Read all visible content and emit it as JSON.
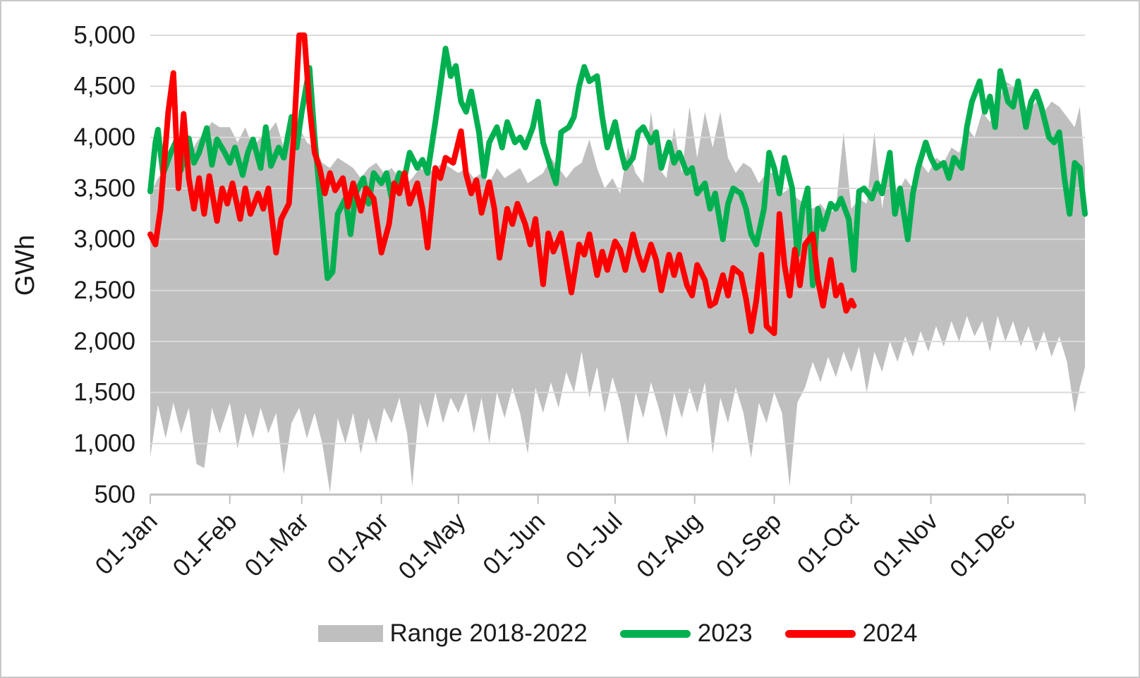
{
  "chart_data": {
    "type": "line",
    "title": "",
    "xlabel": "",
    "ylabel": "GWh",
    "ylim": [
      500,
      5000
    ],
    "ytick_step": 500,
    "yticks_values": [
      5000,
      4500,
      4000,
      3500,
      3000,
      2500,
      2000,
      1500,
      1000,
      500
    ],
    "yticks_labels": [
      "5,000",
      "4,500",
      "4,000",
      "3,500",
      "3,000",
      "2,500",
      "2,000",
      "1,500",
      "1,000",
      "500"
    ],
    "x_unit": "day-of-year",
    "x_range_days": [
      1,
      365
    ],
    "xticks": [
      {
        "day": 1,
        "label": "01-Jan"
      },
      {
        "day": 32,
        "label": "01-Feb"
      },
      {
        "day": 60,
        "label": "01-Mar"
      },
      {
        "day": 91,
        "label": "01-Apr"
      },
      {
        "day": 121,
        "label": "01-May"
      },
      {
        "day": 152,
        "label": "01-Jun"
      },
      {
        "day": 182,
        "label": "01-Jul"
      },
      {
        "day": 213,
        "label": "01-Aug"
      },
      {
        "day": 244,
        "label": "01-Sep"
      },
      {
        "day": 274,
        "label": "01-Oct"
      },
      {
        "day": 305,
        "label": "01-Nov"
      },
      {
        "day": 335,
        "label": "01-Dec"
      }
    ],
    "end_tick_day": 365,
    "grid": "horizontal",
    "gridline_color": "#D9D9D9",
    "axis_line_color": "#BFBFBF",
    "text_color": "#1a1a1a",
    "legend_position": "bottom",
    "note": "Red 2024 series is clipped at the 5,000 axis maximum around 01-Mar; 2024 data ends in early October.",
    "series": [
      {
        "name": "Range 2018-2022",
        "type": "band",
        "color": "#BFBFBF",
        "days": [
          1,
          4,
          7,
          10,
          13,
          16,
          19,
          22,
          25,
          28,
          32,
          35,
          38,
          41,
          44,
          47,
          50,
          53,
          56,
          59,
          62,
          65,
          68,
          71,
          74,
          77,
          80,
          83,
          86,
          89,
          92,
          95,
          98,
          101,
          103,
          106,
          109,
          112,
          115,
          118,
          121,
          124,
          127,
          130,
          133,
          136,
          139,
          142,
          145,
          148,
          151,
          154,
          157,
          160,
          163,
          166,
          169,
          172,
          175,
          178,
          181,
          184,
          187,
          190,
          193,
          196,
          199,
          202,
          205,
          208,
          211,
          214,
          217,
          220,
          223,
          226,
          229,
          232,
          235,
          238,
          241,
          244,
          247,
          250,
          253,
          256,
          259,
          262,
          265,
          268,
          271,
          274,
          277,
          280,
          283,
          286,
          289,
          292,
          295,
          298,
          301,
          304,
          307,
          310,
          313,
          316,
          319,
          322,
          325,
          328,
          331,
          334,
          337,
          340,
          343,
          346,
          349,
          352,
          355,
          358,
          361,
          363,
          365
        ],
        "max": [
          3450,
          3600,
          3700,
          3850,
          3780,
          3800,
          3950,
          4050,
          4150,
          4100,
          4100,
          3950,
          4100,
          3900,
          4000,
          4050,
          4150,
          3900,
          4000,
          4100,
          3950,
          3900,
          3750,
          3700,
          3800,
          3750,
          3700,
          3600,
          3700,
          3750,
          3650,
          3700,
          3600,
          3550,
          3600,
          3700,
          3650,
          3700,
          3750,
          3700,
          3650,
          3700,
          3600,
          3650,
          3550,
          3700,
          3600,
          3650,
          3700,
          3550,
          3600,
          3650,
          3800,
          3700,
          3600,
          3700,
          3750,
          3980,
          3700,
          3500,
          3600,
          3450,
          3900,
          3650,
          3550,
          4250,
          3700,
          3600,
          4100,
          3650,
          4300,
          3800,
          4250,
          3900,
          4250,
          3800,
          3650,
          3750,
          3700,
          3550,
          3650,
          3650,
          3450,
          3500,
          3400,
          3350,
          3300,
          3350,
          3250,
          3300,
          4050,
          3300,
          3400,
          3350,
          4050,
          3300,
          3800,
          3450,
          3600,
          3500,
          3750,
          3650,
          3800,
          3750,
          3900,
          3850,
          4100,
          4000,
          4250,
          4150,
          4300,
          4550,
          4500,
          4400,
          4250,
          4350,
          4250,
          4350,
          4300,
          4200,
          4100,
          4300,
          3700
        ],
        "min": [
          870,
          1380,
          1050,
          1400,
          1100,
          1350,
          800,
          760,
          1350,
          1100,
          1400,
          950,
          1300,
          1050,
          1350,
          1100,
          1300,
          700,
          1200,
          1350,
          1050,
          1300,
          1000,
          520,
          1250,
          1000,
          1300,
          900,
          1250,
          1000,
          1350,
          1200,
          1450,
          1100,
          580,
          1400,
          1150,
          1500,
          1200,
          1450,
          1300,
          1500,
          1100,
          1450,
          1000,
          1500,
          1250,
          1550,
          1300,
          900,
          1550,
          1300,
          1600,
          1350,
          1700,
          1500,
          1900,
          1450,
          1750,
          1300,
          1650,
          1400,
          990,
          1500,
          1250,
          1600,
          1350,
          1050,
          1500,
          1250,
          1550,
          1300,
          1600,
          900,
          1450,
          1200,
          1550,
          1300,
          860,
          1400,
          1200,
          1500,
          1300,
          580,
          1400,
          1550,
          1800,
          1600,
          1850,
          1650,
          1900,
          1700,
          1950,
          1500,
          1900,
          1700,
          2000,
          1800,
          2050,
          1850,
          2100,
          1900,
          2150,
          1950,
          2200,
          2000,
          2250,
          2050,
          2200,
          1900,
          2250,
          2000,
          2200,
          1950,
          2150,
          1900,
          2100,
          1850,
          2050,
          1800,
          1300,
          1550,
          1750
        ]
      },
      {
        "name": "2023",
        "type": "line",
        "color": "#00B050",
        "days": [
          1,
          3,
          4,
          6,
          9,
          11,
          13,
          16,
          18,
          20,
          23,
          25,
          27,
          30,
          32,
          34,
          37,
          39,
          41,
          44,
          46,
          48,
          51,
          53,
          56,
          58,
          60,
          63,
          65,
          67,
          70,
          72,
          74,
          77,
          79,
          81,
          84,
          86,
          88,
          91,
          93,
          95,
          98,
          100,
          102,
          105,
          107,
          109,
          112,
          114,
          116,
          118,
          120,
          122,
          124,
          126,
          129,
          131,
          133,
          136,
          138,
          140,
          143,
          145,
          147,
          150,
          152,
          154,
          157,
          159,
          161,
          164,
          166,
          168,
          170,
          172,
          175,
          177,
          179,
          182,
          184,
          186,
          189,
          191,
          193,
          196,
          198,
          200,
          203,
          205,
          207,
          210,
          212,
          214,
          217,
          219,
          221,
          224,
          226,
          228,
          231,
          233,
          235,
          237,
          240,
          242,
          244,
          246,
          248,
          251,
          253,
          255,
          257,
          259,
          261,
          263,
          266,
          268,
          270,
          273,
          275,
          277,
          279,
          282,
          284,
          286,
          289,
          291,
          293,
          296,
          298,
          300,
          303,
          305,
          307,
          310,
          312,
          314,
          317,
          319,
          321,
          324,
          326,
          328,
          330,
          332,
          335,
          337,
          339,
          342,
          344,
          346,
          348,
          351,
          353,
          355,
          357,
          359,
          361,
          363,
          365
        ],
        "values": [
          3470,
          3950,
          4075,
          3640,
          3850,
          3960,
          3680,
          3990,
          3750,
          3850,
          4090,
          3730,
          3980,
          3850,
          3750,
          3900,
          3630,
          3850,
          3980,
          3700,
          4100,
          3720,
          3900,
          3800,
          4200,
          3900,
          4250,
          4680,
          4000,
          3450,
          2620,
          2680,
          3250,
          3400,
          3050,
          3450,
          3600,
          3350,
          3650,
          3550,
          3650,
          3400,
          3650,
          3600,
          3850,
          3700,
          3780,
          3650,
          4150,
          4500,
          4870,
          4600,
          4700,
          4350,
          4250,
          4450,
          4050,
          3620,
          3950,
          4100,
          3900,
          4150,
          3950,
          4000,
          3900,
          4100,
          4350,
          3950,
          3700,
          3550,
          4050,
          4100,
          4200,
          4500,
          4690,
          4550,
          4600,
          4200,
          3900,
          4150,
          3900,
          3700,
          3800,
          4050,
          4100,
          3950,
          4050,
          3700,
          3950,
          3750,
          3850,
          3650,
          3700,
          3450,
          3550,
          3300,
          3450,
          3000,
          3350,
          3500,
          3450,
          3300,
          3050,
          2950,
          3300,
          3850,
          3700,
          3450,
          3800,
          3500,
          2850,
          3300,
          3500,
          2550,
          3300,
          3100,
          3350,
          3300,
          3400,
          3200,
          2700,
          3470,
          3500,
          3400,
          3550,
          3450,
          3850,
          3250,
          3500,
          3000,
          3450,
          3700,
          3950,
          3800,
          3700,
          3750,
          3600,
          3800,
          3700,
          4100,
          4350,
          4550,
          4250,
          4400,
          4100,
          4650,
          4350,
          4300,
          4550,
          4100,
          4350,
          4450,
          4300,
          4000,
          3950,
          4050,
          3600,
          3250,
          3750,
          3700,
          3250
        ]
      },
      {
        "name": "2024",
        "type": "line",
        "color": "#FF0000",
        "days": [
          1,
          3,
          5,
          8,
          10,
          12,
          14,
          16,
          18,
          20,
          22,
          24,
          27,
          29,
          31,
          33,
          36,
          38,
          40,
          43,
          45,
          47,
          50,
          52,
          55,
          57,
          59,
          61,
          63,
          65,
          67,
          69,
          71,
          73,
          76,
          78,
          80,
          83,
          85,
          88,
          91,
          94,
          96,
          98,
          100,
          102,
          105,
          107,
          109,
          112,
          114,
          116,
          119,
          122,
          124,
          126,
          128,
          130,
          133,
          135,
          137,
          140,
          142,
          144,
          147,
          149,
          151,
          154,
          156,
          158,
          161,
          163,
          165,
          168,
          170,
          172,
          175,
          177,
          179,
          182,
          184,
          186,
          189,
          191,
          193,
          196,
          198,
          200,
          203,
          205,
          207,
          210,
          212,
          214,
          217,
          219,
          221,
          224,
          226,
          228,
          231,
          233,
          235,
          237,
          239,
          241,
          244,
          246,
          248,
          250,
          252,
          254,
          256,
          259,
          261,
          263,
          266,
          268,
          270,
          272,
          274,
          275
        ],
        "values": [
          3050,
          2950,
          3300,
          4250,
          4630,
          3500,
          4230,
          3600,
          3300,
          3600,
          3250,
          3620,
          3180,
          3500,
          3350,
          3550,
          3200,
          3500,
          3250,
          3450,
          3300,
          3500,
          2870,
          3200,
          3350,
          4050,
          5000,
          5000,
          4300,
          3850,
          3700,
          3450,
          3650,
          3480,
          3600,
          3320,
          3550,
          3280,
          3500,
          3400,
          2870,
          3150,
          3550,
          3450,
          3650,
          3350,
          3550,
          3300,
          2920,
          3700,
          3600,
          3800,
          3750,
          4060,
          3640,
          3450,
          3580,
          3260,
          3560,
          3300,
          2820,
          3300,
          3150,
          3350,
          3150,
          2950,
          3200,
          2560,
          3060,
          2880,
          3060,
          2780,
          2480,
          2950,
          2850,
          3050,
          2650,
          2880,
          2700,
          2980,
          2900,
          2700,
          3050,
          2850,
          2700,
          2950,
          2800,
          2500,
          2850,
          2650,
          2850,
          2550,
          2450,
          2750,
          2600,
          2350,
          2380,
          2650,
          2450,
          2720,
          2660,
          2420,
          2100,
          2400,
          2850,
          2150,
          2080,
          3250,
          2750,
          2450,
          2900,
          2550,
          2950,
          3050,
          2600,
          2350,
          2800,
          2450,
          2550,
          2300,
          2400,
          2350
        ]
      }
    ]
  },
  "legend": {
    "items": [
      {
        "label": "Range 2018-2022",
        "swatch": "band",
        "color": "#BFBFBF"
      },
      {
        "label": "2023",
        "swatch": "line",
        "color": "#00B050"
      },
      {
        "label": "2024",
        "swatch": "line",
        "color": "#FF0000"
      }
    ]
  }
}
